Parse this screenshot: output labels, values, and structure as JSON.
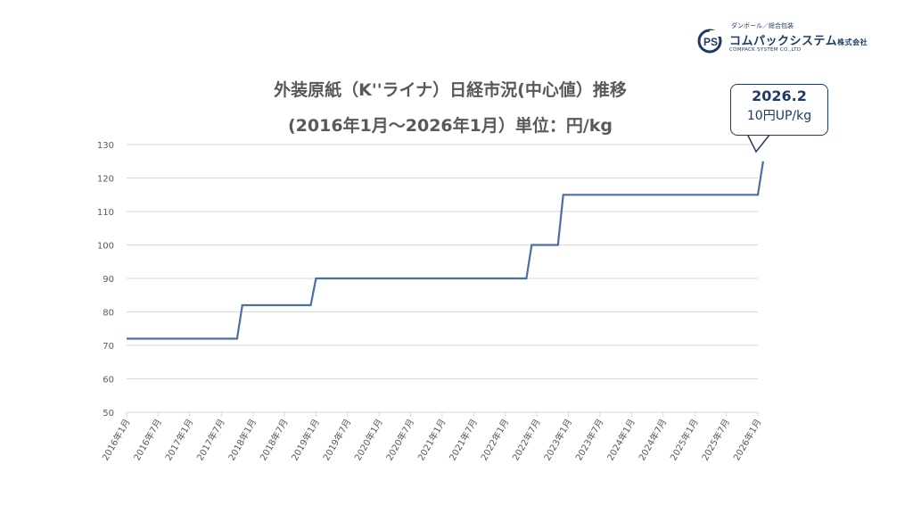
{
  "logo": {
    "tagline": "ダンボール／総合包装",
    "mark": "PS",
    "name": "コムパックシステム",
    "suffix": "株式会社",
    "english": "COMPACK SYSTEM CO.,LTD"
  },
  "callout": {
    "date": "2026.2",
    "text": "10円UP/kg",
    "color": "#1f3a68"
  },
  "chart_data": {
    "type": "line",
    "title": "外装原紙（K''ライナ）日経市況(中心値）推移",
    "subtitle": "(2016年1月～2026年1月）単位：円/kg",
    "xlabel": "",
    "ylabel": "",
    "ylim": [
      50,
      130
    ],
    "y_ticks": [
      50,
      60,
      70,
      80,
      90,
      100,
      110,
      120,
      130
    ],
    "x_ticks": [
      "2016年1月",
      "2016年7月",
      "2017年1月",
      "2017年7月",
      "2018年1月",
      "2018年7月",
      "2019年1月",
      "2019年7月",
      "2020年1月",
      "2020年7月",
      "2021年1月",
      "2021年7月",
      "2022年1月",
      "2022年7月",
      "2023年1月",
      "2023年7月",
      "2024年1月",
      "2024年7月",
      "2025年1月",
      "2025年7月",
      "2026年1月"
    ],
    "grid": true,
    "line_color": "#4a6fa5",
    "series": [
      {
        "points": [
          [
            "2016-01",
            72
          ],
          [
            "2017-10",
            72
          ],
          [
            "2017-11",
            82
          ],
          [
            "2018-12",
            82
          ],
          [
            "2019-01",
            90
          ],
          [
            "2022-05",
            90
          ],
          [
            "2022-06",
            100
          ],
          [
            "2022-11",
            100
          ],
          [
            "2022-12",
            115
          ],
          [
            "2026-01",
            115
          ],
          [
            "2026-02",
            125
          ]
        ]
      }
    ]
  }
}
